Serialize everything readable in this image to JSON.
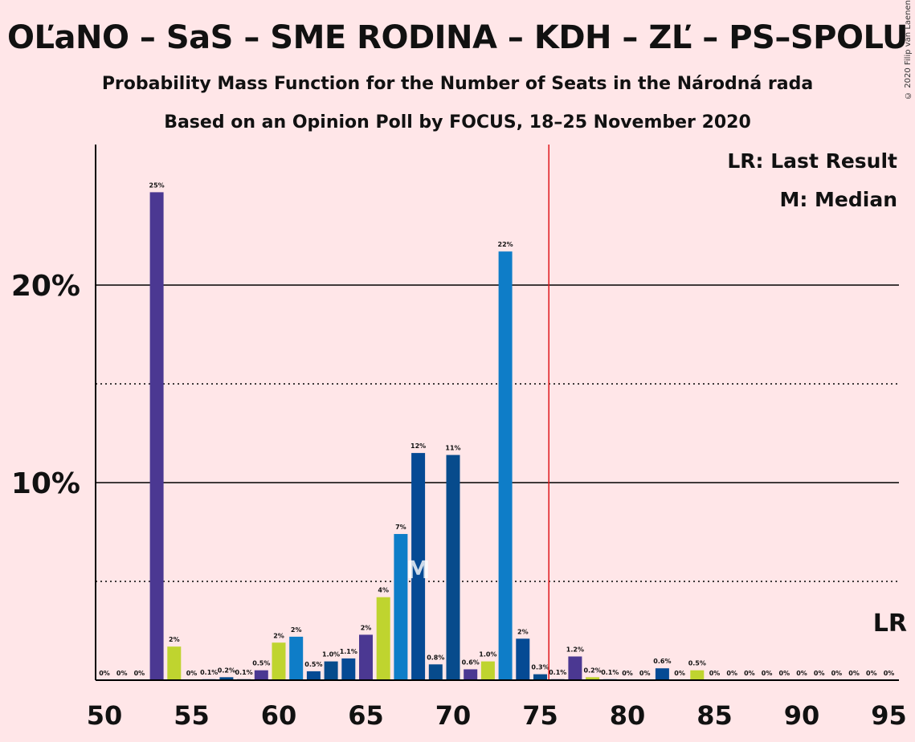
{
  "header": {
    "title": "OĽaNO – SaS – SME RODINA – KDH – ZĽ – PS–SPOLU",
    "subtitle1": "Probability Mass Function for the Number of Seats in the Národná rada",
    "subtitle2": "Based on an Opinion Poll by FOCUS, 18–25 November 2020",
    "copyright": "© 2020 Filip van Laenen"
  },
  "legend": {
    "lr_text": "LR: Last Result",
    "median_text": "M: Median",
    "lr_marker": "LR",
    "median_marker": "M"
  },
  "colors": {
    "background": "#FFE6E8",
    "purple": "#4B3892",
    "lime": "#BFD42F",
    "blue": "#0E7DC8",
    "darkblue": "#054A94",
    "navy": "#074B8C",
    "last_result_line": "#E0181C"
  },
  "chart_data": {
    "type": "bar",
    "x_ticks": [
      50,
      55,
      60,
      65,
      70,
      75,
      80,
      85,
      90,
      95
    ],
    "y_ticks": [
      {
        "value": 10,
        "label": "10%"
      },
      {
        "value": 20,
        "label": "20%"
      }
    ],
    "y_dotted": [
      5,
      15
    ],
    "ylim": [
      0,
      27
    ],
    "xlim": [
      49.5,
      95.5
    ],
    "median": 68,
    "last_result": 76,
    "bars": [
      {
        "seats": 50,
        "value": 0,
        "label": "0%",
        "color": "purple"
      },
      {
        "seats": 51,
        "value": 0,
        "label": "0%",
        "color": "purple"
      },
      {
        "seats": 52,
        "value": 0,
        "label": "0%",
        "color": "purple"
      },
      {
        "seats": 53,
        "value": 24.7,
        "label": "25%",
        "color": "purple"
      },
      {
        "seats": 54,
        "value": 1.7,
        "label": "2%",
        "color": "lime"
      },
      {
        "seats": 55,
        "value": 0,
        "label": "0%",
        "color": "blue"
      },
      {
        "seats": 56,
        "value": 0.05,
        "label": "0.1%",
        "color": "blue"
      },
      {
        "seats": 57,
        "value": 0.15,
        "label": "0.2%",
        "color": "navy"
      },
      {
        "seats": 58,
        "value": 0.05,
        "label": "0.1%",
        "color": "navy"
      },
      {
        "seats": 59,
        "value": 0.5,
        "label": "0.5%",
        "color": "purple"
      },
      {
        "seats": 60,
        "value": 1.9,
        "label": "2%",
        "color": "lime"
      },
      {
        "seats": 61,
        "value": 2.2,
        "label": "2%",
        "color": "blue"
      },
      {
        "seats": 62,
        "value": 0.45,
        "label": "0.5%",
        "color": "darkblue"
      },
      {
        "seats": 63,
        "value": 0.95,
        "label": "1.0%",
        "color": "navy"
      },
      {
        "seats": 64,
        "value": 1.1,
        "label": "1.1%",
        "color": "darkblue"
      },
      {
        "seats": 65,
        "value": 2.3,
        "label": "2%",
        "color": "purple"
      },
      {
        "seats": 66,
        "value": 4.2,
        "label": "4%",
        "color": "lime"
      },
      {
        "seats": 67,
        "value": 7.4,
        "label": "7%",
        "color": "blue"
      },
      {
        "seats": 68,
        "value": 11.5,
        "label": "12%",
        "color": "darkblue"
      },
      {
        "seats": 69,
        "value": 0.8,
        "label": "0.8%",
        "color": "navy"
      },
      {
        "seats": 70,
        "value": 11.4,
        "label": "11%",
        "color": "navy"
      },
      {
        "seats": 71,
        "value": 0.55,
        "label": "0.6%",
        "color": "purple"
      },
      {
        "seats": 72,
        "value": 0.95,
        "label": "1.0%",
        "color": "lime"
      },
      {
        "seats": 73,
        "value": 21.7,
        "label": "22%",
        "color": "blue"
      },
      {
        "seats": 74,
        "value": 2.1,
        "label": "2%",
        "color": "darkblue"
      },
      {
        "seats": 75,
        "value": 0.3,
        "label": "0.3%",
        "color": "navy"
      },
      {
        "seats": 76,
        "value": 0.05,
        "label": "0.1%",
        "color": "navy"
      },
      {
        "seats": 77,
        "value": 1.2,
        "label": "1.2%",
        "color": "purple"
      },
      {
        "seats": 78,
        "value": 0.15,
        "label": "0.2%",
        "color": "lime"
      },
      {
        "seats": 79,
        "value": 0.05,
        "label": "0.1%",
        "color": "blue"
      },
      {
        "seats": 80,
        "value": 0,
        "label": "0%",
        "color": "darkblue"
      },
      {
        "seats": 81,
        "value": 0,
        "label": "0%",
        "color": "navy"
      },
      {
        "seats": 82,
        "value": 0.6,
        "label": "0.6%",
        "color": "darkblue"
      },
      {
        "seats": 83,
        "value": 0,
        "label": "0%",
        "color": "purple"
      },
      {
        "seats": 84,
        "value": 0.5,
        "label": "0.5%",
        "color": "lime"
      },
      {
        "seats": 85,
        "value": 0,
        "label": "0%",
        "color": "blue"
      },
      {
        "seats": 86,
        "value": 0,
        "label": "0%",
        "color": "blue"
      },
      {
        "seats": 87,
        "value": 0,
        "label": "0%",
        "color": "blue"
      },
      {
        "seats": 88,
        "value": 0,
        "label": "0%",
        "color": "blue"
      },
      {
        "seats": 89,
        "value": 0,
        "label": "0%",
        "color": "blue"
      },
      {
        "seats": 90,
        "value": 0,
        "label": "0%",
        "color": "blue"
      },
      {
        "seats": 91,
        "value": 0,
        "label": "0%",
        "color": "blue"
      },
      {
        "seats": 92,
        "value": 0,
        "label": "0%",
        "color": "blue"
      },
      {
        "seats": 93,
        "value": 0,
        "label": "0%",
        "color": "blue"
      },
      {
        "seats": 94,
        "value": 0,
        "label": "0%",
        "color": "blue"
      },
      {
        "seats": 95,
        "value": 0,
        "label": "0%",
        "color": "blue"
      }
    ]
  }
}
